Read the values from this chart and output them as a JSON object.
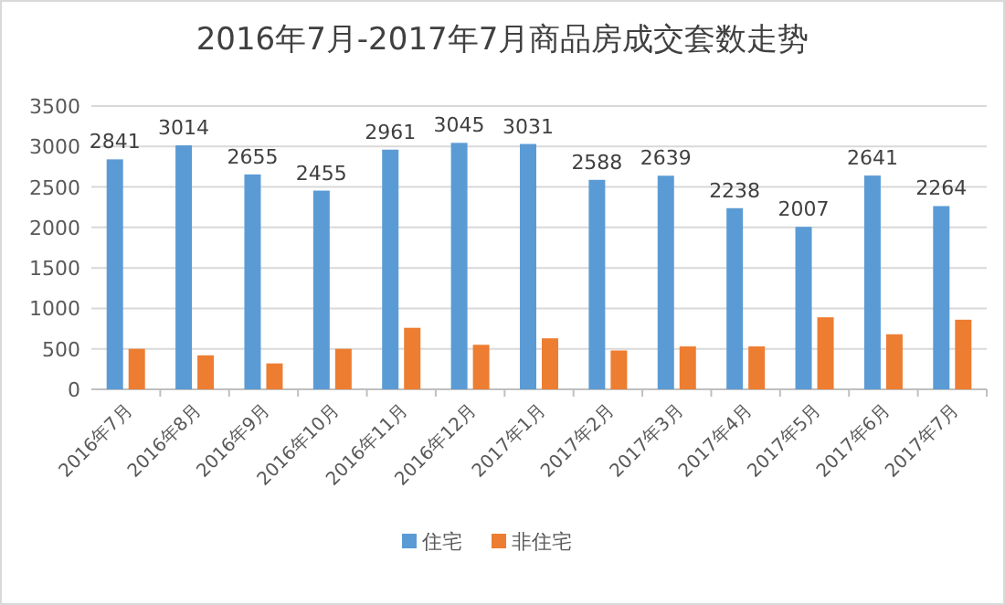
{
  "chart_data": {
    "type": "bar",
    "title": "2016年7月-2017年7月商品房成交套数走势",
    "categories": [
      "2016年7月",
      "2016年8月",
      "2016年9月",
      "2016年10月",
      "2016年11月",
      "2016年12月",
      "2017年1月",
      "2017年2月",
      "2017年3月",
      "2017年4月",
      "2017年5月",
      "2017年6月",
      "2017年7月"
    ],
    "series": [
      {
        "name": "住宅",
        "color": "#5b9bd5",
        "values": [
          2841,
          3014,
          2655,
          2455,
          2961,
          3045,
          3031,
          2588,
          2639,
          2238,
          2007,
          2641,
          2264
        ],
        "value_labels": [
          "2841",
          "3014",
          "2655",
          "2455",
          "2961",
          "3045",
          "3031",
          "2588",
          "2639",
          "2238",
          "2007",
          "2641",
          "2264"
        ]
      },
      {
        "name": "非住宅",
        "color": "#ed7d31",
        "values": [
          500,
          420,
          320,
          500,
          760,
          550,
          630,
          480,
          530,
          530,
          890,
          680,
          860
        ]
      }
    ],
    "ylim": [
      0,
      3500
    ],
    "yticks": [
      0,
      500,
      1000,
      1500,
      2000,
      2500,
      3000,
      3500
    ],
    "grid": "y",
    "legend": "bottom"
  }
}
